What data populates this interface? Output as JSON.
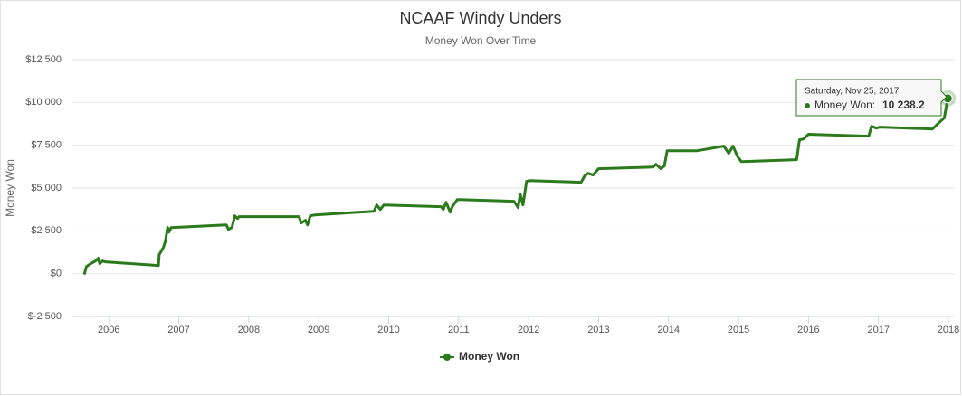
{
  "chart_data": {
    "type": "line",
    "title": "NCAAF Windy Unders",
    "subtitle": "Money Won Over Time",
    "y_label": "Money Won",
    "xlim": [
      2005.48,
      2018.09
    ],
    "xticks": [
      2006,
      2007,
      2008,
      2009,
      2010,
      2011,
      2012,
      2013,
      2014,
      2015,
      2016,
      2017,
      2018
    ],
    "ylim": [
      -2500,
      12500
    ],
    "yticks": [
      {
        "value": -2500,
        "label": "$-2 500"
      },
      {
        "value": 0,
        "label": "$0"
      },
      {
        "value": 2500,
        "label": "$2 500"
      },
      {
        "value": 5000,
        "label": "$5 000"
      },
      {
        "value": 7500,
        "label": "$7 500"
      },
      {
        "value": 10000,
        "label": "$10 000"
      },
      {
        "value": 12500,
        "label": "$12 500"
      }
    ],
    "grid": true,
    "legend": "bottom",
    "series": [
      {
        "name": "Money Won",
        "color": "#2b7a1b",
        "x": [
          2005.65,
          2005.68,
          2005.74,
          2005.81,
          2005.85,
          2005.87,
          2005.91,
          2005.95,
          2006.71,
          2006.72,
          2006.78,
          2006.81,
          2006.84,
          2006.86,
          2006.89,
          2007.68,
          2007.71,
          2007.76,
          2007.8,
          2007.84,
          2007.86,
          2008.72,
          2008.75,
          2008.81,
          2008.84,
          2008.88,
          2008.95,
          2009.79,
          2009.83,
          2009.88,
          2009.93,
          2010.75,
          2010.78,
          2010.82,
          2010.88,
          2010.91,
          2010.98,
          2011.79,
          2011.85,
          2011.88,
          2011.92,
          2011.97,
          2012.01,
          2012.75,
          2012.8,
          2012.85,
          2012.92,
          2013.0,
          2013.78,
          2013.82,
          2013.89,
          2013.94,
          2013.98,
          2014.41,
          2014.79,
          2014.86,
          2014.92,
          2014.99,
          2015.04,
          2015.83,
          2015.87,
          2015.93,
          2016.0,
          2016.86,
          2016.9,
          2016.97,
          2017.02,
          2017.77,
          2017.86,
          2017.94,
          2017.99
        ],
        "values": [
          -50,
          420,
          580,
          740,
          900,
          580,
          740,
          690,
          480,
          1110,
          1530,
          1900,
          2700,
          2430,
          2690,
          2850,
          2590,
          2690,
          3380,
          3220,
          3330,
          3330,
          2960,
          3120,
          2850,
          3380,
          3430,
          3640,
          4010,
          3750,
          4010,
          3910,
          3750,
          4170,
          3590,
          3910,
          4330,
          4230,
          3860,
          4650,
          4010,
          5390,
          5440,
          5340,
          5710,
          5860,
          5760,
          6130,
          6230,
          6390,
          6130,
          6290,
          7180,
          7180,
          7450,
          7030,
          7450,
          6810,
          6550,
          6660,
          7820,
          7870,
          8140,
          8030,
          8610,
          8500,
          8560,
          8450,
          8800,
          9100,
          10238.2
        ]
      }
    ],
    "tooltip": {
      "date": "Saturday, Nov 25, 2017",
      "label": "Money Won:",
      "value": 10238.2,
      "value_label": "10 238.2"
    }
  }
}
